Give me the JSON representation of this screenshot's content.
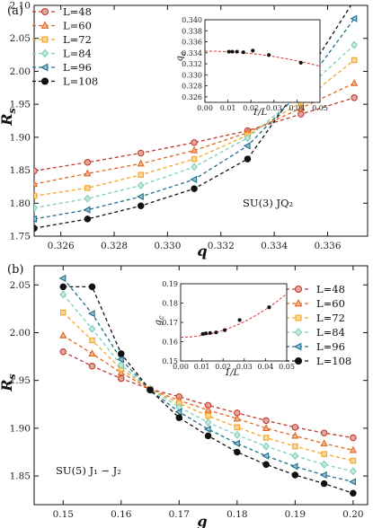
{
  "chart_data": [
    {
      "type": "line",
      "panel_label": "(a)",
      "xlabel": "q",
      "ylabel": "R_s",
      "annotation": "SU(3) JQ₂",
      "xlim": [
        0.325,
        0.3375
      ],
      "ylim": [
        1.75,
        2.1
      ],
      "xticks": [
        "0.326",
        "0.328",
        "0.330",
        "0.332",
        "0.334",
        "0.336"
      ],
      "yticks": [
        "1.75",
        "1.80",
        "1.85",
        "1.90",
        "1.95",
        "2.00",
        "2.05",
        "2.10"
      ],
      "x": [
        0.325,
        0.327,
        0.329,
        0.331,
        0.333,
        0.335,
        0.337
      ],
      "series": [
        {
          "name": "L=48",
          "marker": "circle",
          "color": "#c0392b",
          "values": [
            1.849,
            1.862,
            1.876,
            1.892,
            1.91,
            1.935,
            1.96
          ]
        },
        {
          "name": "L=60",
          "marker": "triangle-up",
          "color": "#e0661f",
          "values": [
            1.829,
            1.845,
            1.86,
            1.88,
            1.907,
            1.944,
            1.982
          ]
        },
        {
          "name": "L=72",
          "marker": "square",
          "color": "#f5a623",
          "values": [
            1.811,
            1.823,
            1.843,
            1.867,
            1.903,
            1.953,
            2.017
          ]
        },
        {
          "name": "L=84",
          "marker": "diamond",
          "color": "#7ecfb8",
          "values": [
            1.793,
            1.807,
            1.827,
            1.855,
            1.899,
            1.966,
            2.04
          ]
        },
        {
          "name": "L=96",
          "marker": "triangle-left",
          "color": "#1f6f8b",
          "values": [
            1.776,
            1.79,
            1.81,
            1.836,
            1.887,
            1.97,
            2.08
          ]
        },
        {
          "name": "L=108",
          "marker": "circle",
          "color": "#111111",
          "values": [
            1.762,
            1.776,
            1.796,
            1.822,
            1.867,
            1.981,
            2.108
          ]
        }
      ],
      "inset": {
        "xlabel": "1/L",
        "ylabel": "q_c",
        "xlim": [
          0.0,
          0.05
        ],
        "ylim": [
          0.325,
          0.34
        ],
        "xticks": [
          "0.00",
          "0.01",
          "0.02",
          "0.03",
          "0.04",
          "0.05"
        ],
        "yticks": [
          "0.326",
          "0.328",
          "0.330",
          "0.332",
          "0.334",
          "0.336",
          "0.338",
          "0.340"
        ],
        "points": [
          [
            0.0104,
            0.3342
          ],
          [
            0.0119,
            0.3342
          ],
          [
            0.0139,
            0.3342
          ],
          [
            0.0167,
            0.3341
          ],
          [
            0.0208,
            0.3344
          ],
          [
            0.0278,
            0.3336
          ],
          [
            0.0417,
            0.3322
          ]
        ],
        "fit": {
          "a": 0.3343,
          "b": 0.0,
          "c": -1.1
        }
      }
    },
    {
      "type": "line",
      "panel_label": "(b)",
      "xlabel": "g",
      "ylabel": "R_s",
      "annotation": "SU(5) J₁ − J₂",
      "xlim": [
        0.145,
        0.2025
      ],
      "ylim": [
        1.82,
        2.07
      ],
      "xticks": [
        "0.15",
        "0.16",
        "0.17",
        "0.18",
        "0.19",
        "0.20"
      ],
      "yticks": [
        "1.85",
        "1.90",
        "1.95",
        "2.00",
        "2.05"
      ],
      "x": [
        0.15,
        0.155,
        0.16,
        0.165,
        0.17,
        0.175,
        0.18,
        0.185,
        0.19,
        0.195,
        0.2
      ],
      "series": [
        {
          "name": "L=48",
          "marker": "circle",
          "color": "#c0392b",
          "values": [
            1.98,
            1.965,
            1.952,
            1.941,
            1.933,
            1.924,
            1.916,
            1.908,
            1.901,
            1.895,
            1.89
          ]
        },
        {
          "name": "L=60",
          "marker": "triangle-up",
          "color": "#e0661f",
          "values": [
            1.997,
            1.978,
            1.958,
            1.941,
            1.929,
            1.919,
            1.91,
            1.9,
            1.892,
            1.884,
            1.877
          ]
        },
        {
          "name": "L=72",
          "marker": "square",
          "color": "#f5a623",
          "values": [
            2.021,
            1.992,
            1.962,
            1.941,
            1.926,
            1.913,
            1.901,
            1.89,
            1.881,
            1.873,
            1.866
          ]
        },
        {
          "name": "L=84",
          "marker": "diamond",
          "color": "#7ecfb8",
          "values": [
            2.04,
            2.004,
            1.966,
            1.941,
            1.922,
            1.906,
            1.893,
            1.881,
            1.871,
            1.862,
            1.855
          ]
        },
        {
          "name": "L=96",
          "marker": "triangle-left",
          "color": "#1f6f8b",
          "values": [
            2.057,
            2.02,
            1.972,
            1.94,
            1.917,
            1.899,
            1.884,
            1.871,
            1.86,
            1.851,
            1.844
          ]
        },
        {
          "name": "L=108",
          "marker": "circle",
          "color": "#111111",
          "values": [
            2.048,
            2.048,
            1.978,
            1.94,
            1.911,
            1.892,
            1.875,
            1.862,
            1.851,
            1.842,
            1.832
          ]
        }
      ],
      "inset": {
        "xlabel": "1/L",
        "ylabel": "g_c",
        "xlim": [
          0.0,
          0.05
        ],
        "ylim": [
          0.15,
          0.19
        ],
        "xticks": [
          "0.00",
          "0.01",
          "0.02",
          "0.03",
          "0.04",
          "0.05"
        ],
        "yticks": [
          "0.15",
          "0.16",
          "0.17",
          "0.18",
          "0.19"
        ],
        "points": [
          [
            0.0104,
            0.164
          ],
          [
            0.0119,
            0.1643
          ],
          [
            0.0139,
            0.1645
          ],
          [
            0.0167,
            0.1648
          ],
          [
            0.0208,
            0.166
          ],
          [
            0.0278,
            0.1712
          ],
          [
            0.0417,
            0.1778
          ]
        ],
        "fit": {
          "a": 0.1623,
          "b": 0.0,
          "c": 9.0
        }
      }
    }
  ]
}
